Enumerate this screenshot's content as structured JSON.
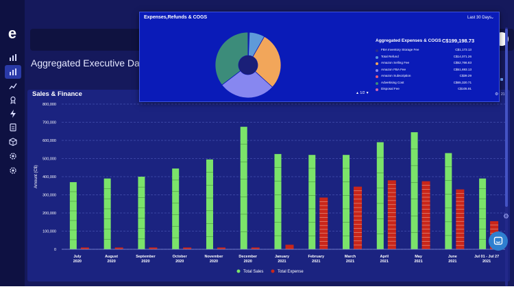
{
  "page": {
    "title": "Aggregated Executive Dashb"
  },
  "sidebar": {
    "items": [
      {
        "icon": "bar-chart-icon"
      },
      {
        "icon": "bar-chart-active-icon"
      },
      {
        "icon": "trend-icon"
      },
      {
        "icon": "award-icon"
      },
      {
        "icon": "bolt-icon"
      },
      {
        "icon": "document-icon"
      },
      {
        "icon": "package-icon"
      },
      {
        "icon": "settings-icon"
      },
      {
        "icon": "settings-alt-icon"
      }
    ]
  },
  "card": {
    "title": "Sales & Finance"
  },
  "popup": {
    "title": "Expenses,Refunds & COGS",
    "period": "Last 30 Days",
    "chevron": "⌄",
    "total_label": "Aggregated Expenses & COGS",
    "total_value": "C$199,198.73",
    "pager": "▲ 1/2 ▼",
    "gear_number": "21",
    "legend": [
      {
        "name": "FBA Inventory Storage Fee",
        "value": "C$1,173.13",
        "color": "#2a2e8a"
      },
      {
        "name": "Total Refund",
        "value": "C$14,071.26",
        "color": "#5f9ad9"
      },
      {
        "name": "Amazon Selling Fee",
        "value": "C$52,766.83",
        "color": "#f2a65a"
      },
      {
        "name": "Amazon FBA Fee",
        "value": "C$51,693.13",
        "color": "#8787f0"
      },
      {
        "name": "Amazon Subscription",
        "value": "C$39.29",
        "color": "#e85c7a"
      },
      {
        "name": "Advertising Cost",
        "value": "C$65,320.71",
        "color": "#3c8c7a"
      },
      {
        "name": "Disposal Fee",
        "value": "C$105.91",
        "color": "#d065b0"
      }
    ]
  },
  "colors": {
    "sales": "#7be36a",
    "expense": "#c9261a"
  },
  "chart_data": [
    {
      "type": "bar",
      "title": "Sales & Finance",
      "ylabel": "Amount (C$)",
      "ylim": [
        0,
        800000
      ],
      "yticks": [
        "0",
        "100,000",
        "200,000",
        "300,000",
        "400,000",
        "500,000",
        "600,000",
        "700,000",
        "800,000"
      ],
      "categories": [
        "July|2020",
        "August|2020",
        "September|2020",
        "October|2020",
        "November|2020",
        "December|2020",
        "January|2021",
        "February|2021",
        "March|2021",
        "April|2021",
        "May|2021",
        "June|2021",
        "Jul 01 - Jul 27|2021"
      ],
      "series": [
        {
          "name": "Total Sales",
          "values": [
            370000,
            390000,
            400000,
            445000,
            495000,
            675000,
            525000,
            520000,
            520000,
            590000,
            645000,
            530000,
            390000
          ]
        },
        {
          "name": "Total Expense",
          "values": [
            10000,
            10000,
            10000,
            10000,
            10000,
            10000,
            25000,
            285000,
            345000,
            380000,
            375000,
            330000,
            155000
          ]
        }
      ],
      "legend": "bottom",
      "grid": true
    },
    {
      "type": "pie",
      "title": "Expenses,Refunds & COGS",
      "donut": true,
      "categories": [
        "FBA Inventory Storage Fee",
        "Total Refund",
        "Amazon Selling Fee",
        "Amazon FBA Fee",
        "Amazon Subscription",
        "Advertising Cost",
        "Disposal Fee"
      ],
      "values": [
        1173.13,
        14071.26,
        52766.83,
        51693.13,
        39.29,
        65320.71,
        105.91
      ]
    }
  ]
}
